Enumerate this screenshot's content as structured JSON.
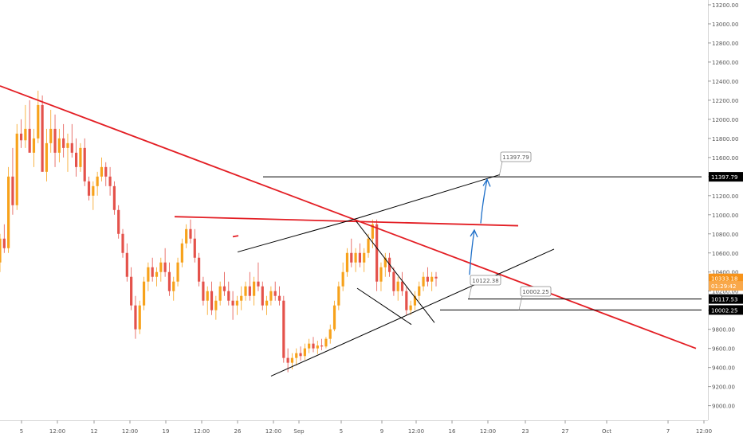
{
  "chart_data": {
    "type": "candlestick",
    "symbol": "",
    "ylim": [
      8930,
      13250
    ],
    "y_ticks": [
      "9000.00",
      "9200.00",
      "9400.00",
      "9600.00",
      "9800.00",
      "10000.00",
      "10200.00",
      "10400.00",
      "10600.00",
      "10800.00",
      "11000.00",
      "11200.00",
      "11400.00",
      "11600.00",
      "11800.00",
      "12000.00",
      "12200.00",
      "12400.00",
      "12600.00",
      "12800.00",
      "13000.00",
      "13200.00"
    ],
    "x_ticks": [
      "5",
      "12:00",
      "12",
      "12:00",
      "19",
      "12:00",
      "26",
      "12:00",
      "Sep",
      "5",
      "9",
      "12:00",
      "16",
      "12:00",
      "23",
      "27",
      "Oct",
      "7",
      "12:00"
    ],
    "price_tags": [
      {
        "label": "11397.79",
        "value": 11397.79,
        "style": "black"
      },
      {
        "label": "10333.18",
        "value": 10333.18,
        "style": "orange"
      },
      {
        "label": "01:29:42",
        "value": 10255,
        "style": "orange-light"
      },
      {
        "label": "10117.53",
        "value": 10117.53,
        "style": "black"
      },
      {
        "label": "10002.25",
        "value": 10002.25,
        "style": "black"
      }
    ],
    "level_labels": [
      {
        "label": "11397.79",
        "value": 11397.79
      },
      {
        "label": "10122.38",
        "value": 10122.38
      },
      {
        "label": "10002.25",
        "value": 10002.25
      }
    ],
    "trendlines": [
      {
        "color": "#e31e24",
        "points": [
          [
            0,
            12350
          ],
          [
            873,
            9600
          ]
        ]
      },
      {
        "color": "#e31e24",
        "points": [
          [
            219,
            10980
          ],
          [
            650,
            10885
          ]
        ]
      },
      {
        "color": "#e31e24",
        "points": [
          [
            292,
            10770
          ],
          [
            299,
            10780
          ]
        ]
      },
      {
        "color": "#000000",
        "points": [
          [
            298,
            10610
          ],
          [
            447,
            10960
          ]
        ]
      },
      {
        "color": "#000000",
        "points": [
          [
            447,
            10960
          ],
          [
            627,
            11420
          ]
        ]
      },
      {
        "color": "#000000",
        "points": [
          [
            340,
            9310
          ],
          [
            695,
            10640
          ]
        ]
      },
      {
        "color": "#000000",
        "points": [
          [
            447,
            10930
          ],
          [
            545,
            9870
          ]
        ]
      },
      {
        "color": "#000000",
        "points": [
          [
            448,
            10230
          ],
          [
            516,
            9850
          ]
        ]
      },
      {
        "color": "#000000",
        "points": [
          [
            330,
            11397.79
          ],
          [
            880,
            11397.79
          ]
        ]
      },
      {
        "color": "#000000",
        "points": [
          [
            587,
            10117.53
          ],
          [
            880,
            10117.53
          ]
        ]
      },
      {
        "color": "#000000",
        "points": [
          [
            552,
            10002.25
          ],
          [
            880,
            10002.25
          ]
        ]
      }
    ],
    "projection_arrows": [
      {
        "color": "#1e6fc8",
        "from": [
          589,
          10370
        ],
        "to": [
          595,
          10840
        ]
      },
      {
        "color": "#1e6fc8",
        "from": [
          603,
          10910
        ],
        "to": [
          611,
          11370
        ]
      }
    ],
    "series": [
      {
        "name": "",
        "values": [
          [
            10500,
            10800,
            10400,
            10750
          ],
          [
            10750,
            10900,
            10600,
            10650
          ],
          [
            10650,
            11500,
            10600,
            11400
          ],
          [
            11400,
            11700,
            11000,
            11100
          ],
          [
            11100,
            11950,
            11050,
            11850
          ],
          [
            11850,
            12000,
            11700,
            11780
          ],
          [
            11780,
            12150,
            11700,
            11900
          ],
          [
            11900,
            12200,
            11800,
            11650
          ],
          [
            11650,
            11900,
            11500,
            11800
          ],
          [
            11800,
            12300,
            11750,
            12150
          ],
          [
            12150,
            12250,
            11800,
            11450
          ],
          [
            11450,
            11900,
            11350,
            11750
          ],
          [
            11750,
            12100,
            11650,
            11900
          ],
          [
            11900,
            12050,
            11500,
            11650
          ],
          [
            11650,
            11900,
            11550,
            11800
          ],
          [
            11800,
            11950,
            11600,
            11700
          ],
          [
            11700,
            11850,
            11450,
            11750
          ],
          [
            11750,
            11950,
            11600,
            11650
          ],
          [
            11650,
            11800,
            11400,
            11500
          ],
          [
            11500,
            11750,
            11450,
            11700
          ],
          [
            11700,
            11800,
            11300,
            11350
          ],
          [
            11350,
            11400,
            11150,
            11200
          ],
          [
            11200,
            11350,
            11050,
            11300
          ],
          [
            11300,
            11450,
            11200,
            11400
          ],
          [
            11400,
            11600,
            11350,
            11500
          ],
          [
            11500,
            11550,
            11300,
            11400
          ],
          [
            11400,
            11500,
            11200,
            11300
          ],
          [
            11300,
            11350,
            11000,
            11050
          ],
          [
            11050,
            11100,
            10750,
            10800
          ],
          [
            10800,
            10850,
            10550,
            10600
          ],
          [
            10600,
            10700,
            10300,
            10350
          ],
          [
            10350,
            10450,
            10000,
            10050
          ],
          [
            10050,
            10150,
            9700,
            9800
          ],
          [
            9800,
            10100,
            9750,
            10050
          ],
          [
            10050,
            10350,
            10000,
            10300
          ],
          [
            10300,
            10500,
            10200,
            10450
          ],
          [
            10450,
            10550,
            10300,
            10350
          ],
          [
            10350,
            10450,
            10250,
            10400
          ],
          [
            10400,
            10550,
            10300,
            10500
          ],
          [
            10500,
            10650,
            10350,
            10400
          ],
          [
            10400,
            10500,
            10150,
            10200
          ],
          [
            10200,
            10350,
            10100,
            10300
          ],
          [
            10300,
            10550,
            10250,
            10500
          ],
          [
            10500,
            10750,
            10450,
            10700
          ],
          [
            10700,
            10900,
            10650,
            10850
          ],
          [
            10850,
            10950,
            10700,
            10750
          ],
          [
            10750,
            10850,
            10500,
            10550
          ],
          [
            10550,
            10600,
            10250,
            10300
          ],
          [
            10300,
            10350,
            10050,
            10100
          ],
          [
            10100,
            10250,
            9950,
            10200
          ],
          [
            10200,
            10300,
            9950,
            10000
          ],
          [
            10000,
            10150,
            9900,
            10100
          ],
          [
            10100,
            10300,
            10050,
            10250
          ],
          [
            10250,
            10400,
            10150,
            10200
          ],
          [
            10200,
            10300,
            10050,
            10100
          ],
          [
            10100,
            10200,
            9900,
            10050
          ],
          [
            10050,
            10150,
            9950,
            10100
          ],
          [
            10100,
            10250,
            10000,
            10150
          ],
          [
            10150,
            10300,
            10100,
            10250
          ],
          [
            10250,
            10400,
            10100,
            10150
          ],
          [
            10150,
            10350,
            10050,
            10300
          ],
          [
            10300,
            10500,
            10200,
            10250
          ],
          [
            10250,
            10300,
            10000,
            10050
          ],
          [
            10050,
            10150,
            9950,
            10100
          ],
          [
            10100,
            10250,
            10050,
            10200
          ],
          [
            10200,
            10300,
            10100,
            10150
          ],
          [
            10150,
            10250,
            10050,
            10100
          ],
          [
            10100,
            10150,
            9450,
            9500
          ],
          [
            9500,
            9600,
            9350,
            9450
          ],
          [
            9450,
            9550,
            9380,
            9500
          ],
          [
            9500,
            9600,
            9420,
            9550
          ],
          [
            9550,
            9620,
            9470,
            9520
          ],
          [
            9520,
            9650,
            9480,
            9600
          ],
          [
            9600,
            9700,
            9550,
            9650
          ],
          [
            9650,
            9720,
            9560,
            9600
          ],
          [
            9600,
            9680,
            9540,
            9630
          ],
          [
            9630,
            9700,
            9580,
            9620
          ],
          [
            9620,
            9720,
            9600,
            9700
          ],
          [
            9700,
            9850,
            9650,
            9800
          ],
          [
            9800,
            10100,
            9780,
            10050
          ],
          [
            10050,
            10300,
            10000,
            10250
          ],
          [
            10250,
            10500,
            10200,
            10400
          ],
          [
            10400,
            10650,
            10350,
            10600
          ],
          [
            10600,
            10750,
            10450,
            10500
          ],
          [
            10500,
            10650,
            10400,
            10600
          ],
          [
            10600,
            10700,
            10450,
            10500
          ],
          [
            10500,
            10650,
            10400,
            10600
          ],
          [
            10600,
            10800,
            10550,
            10750
          ],
          [
            10750,
            10950,
            10650,
            10900
          ],
          [
            10900,
            10950,
            10200,
            10300
          ],
          [
            10300,
            10500,
            10200,
            10450
          ],
          [
            10450,
            10600,
            10350,
            10550
          ],
          [
            10550,
            10600,
            10350,
            10400
          ],
          [
            10400,
            10450,
            10150,
            10200
          ],
          [
            10200,
            10350,
            10100,
            10300
          ],
          [
            10300,
            10400,
            10150,
            10200
          ],
          [
            10200,
            10250,
            9950,
            10000
          ],
          [
            10000,
            10100,
            9950,
            10050
          ],
          [
            10050,
            10200,
            10000,
            10150
          ],
          [
            10150,
            10300,
            10100,
            10250
          ],
          [
            10250,
            10400,
            10200,
            10350
          ],
          [
            10350,
            10450,
            10250,
            10300
          ],
          [
            10300,
            10400,
            10200,
            10350
          ],
          [
            10350,
            10400,
            10250,
            10333
          ]
        ]
      }
    ]
  }
}
